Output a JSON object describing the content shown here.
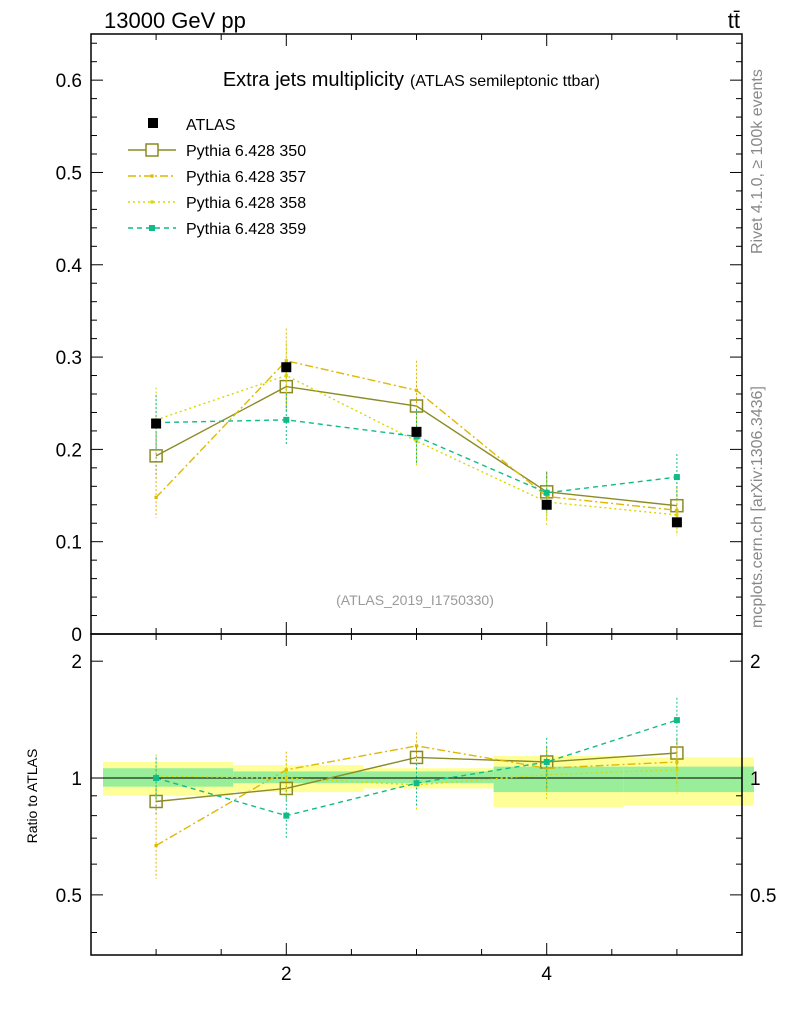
{
  "header": {
    "left": "13000 GeV pp",
    "right": "tt̄"
  },
  "side_labels": {
    "upper": "Rivet 4.1.0, ≥ 100k events",
    "lower": "mcplots.cern.ch [arXiv:1306.3436]"
  },
  "chart_data": {
    "type": "line",
    "title": "Extra jets multiplicity",
    "subtitle": "(ATLAS semileptonic ttbar)",
    "watermark": "(ATLAS_2019_I1750330)",
    "xlim": [
      0.5,
      5.5
    ],
    "main_ylim": [
      0,
      0.65
    ],
    "main_yticks": [
      "0",
      "0.1",
      "0.2",
      "0.3",
      "0.4",
      "0.5",
      "0.6"
    ],
    "ratio_ylim": [
      0.35,
      2.35
    ],
    "ratio_yticks": [
      "0.5",
      "1",
      "2"
    ],
    "ratio_ylabel": "Ratio to ATLAS",
    "xticks": [
      "2",
      "4"
    ],
    "x": [
      1,
      2,
      3,
      4,
      5
    ],
    "bin_edges": [
      0.5,
      1.5,
      2.5,
      3.5,
      4.5,
      5.5
    ],
    "data": {
      "name": "ATLAS",
      "values": [
        0.228,
        0.289,
        0.219,
        0.14,
        0.121
      ]
    },
    "ratio_bands": {
      "inner": [
        [
          0.95,
          1.06
        ],
        [
          0.97,
          1.04
        ],
        [
          0.97,
          1.04
        ],
        [
          0.92,
          1.07
        ],
        [
          0.92,
          1.07
        ]
      ],
      "outer": [
        [
          0.9,
          1.1
        ],
        [
          0.92,
          1.08
        ],
        [
          0.94,
          1.06
        ],
        [
          0.84,
          1.14
        ],
        [
          0.85,
          1.13
        ]
      ]
    },
    "series": [
      {
        "name": "Pythia 6.428 350",
        "color": "#8b8b26",
        "values": [
          0.193,
          0.268,
          0.247,
          0.154,
          0.139
        ],
        "errors": [
          0.025,
          0.028,
          0.027,
          0.022,
          0.02
        ],
        "ratio": [
          0.87,
          0.94,
          1.13,
          1.1,
          1.16
        ],
        "ratio_errors": [
          0.07,
          0.06,
          0.07,
          0.1,
          0.1
        ]
      },
      {
        "name": "Pythia 6.428 357",
        "color": "#e0b800",
        "values": [
          0.148,
          0.296,
          0.264,
          0.149,
          0.134
        ],
        "errors": [
          0.022,
          0.035,
          0.032,
          0.025,
          0.025
        ],
        "ratio": [
          0.67,
          1.05,
          1.21,
          1.06,
          1.1
        ],
        "ratio_errors": [
          0.12,
          0.12,
          0.1,
          0.14,
          0.14
        ]
      },
      {
        "name": "Pythia 6.428 358",
        "color": "#d8d800",
        "values": [
          0.232,
          0.28,
          0.209,
          0.143,
          0.129
        ],
        "errors": [
          0.035,
          0.035,
          0.028,
          0.025,
          0.022
        ],
        "ratio": [
          1.01,
          1.0,
          0.96,
          1.02,
          1.05
        ],
        "ratio_errors": [
          0.14,
          0.12,
          0.13,
          0.14,
          0.14
        ]
      },
      {
        "name": "Pythia 6.428 359",
        "color": "#11bb88",
        "values": [
          0.229,
          0.232,
          0.214,
          0.153,
          0.17
        ],
        "errors": [
          0.03,
          0.028,
          0.03,
          0.022,
          0.025
        ],
        "ratio": [
          1.0,
          0.8,
          0.97,
          1.1,
          1.41
        ],
        "ratio_errors": [
          0.13,
          0.1,
          0.12,
          0.17,
          0.2
        ]
      }
    ]
  }
}
